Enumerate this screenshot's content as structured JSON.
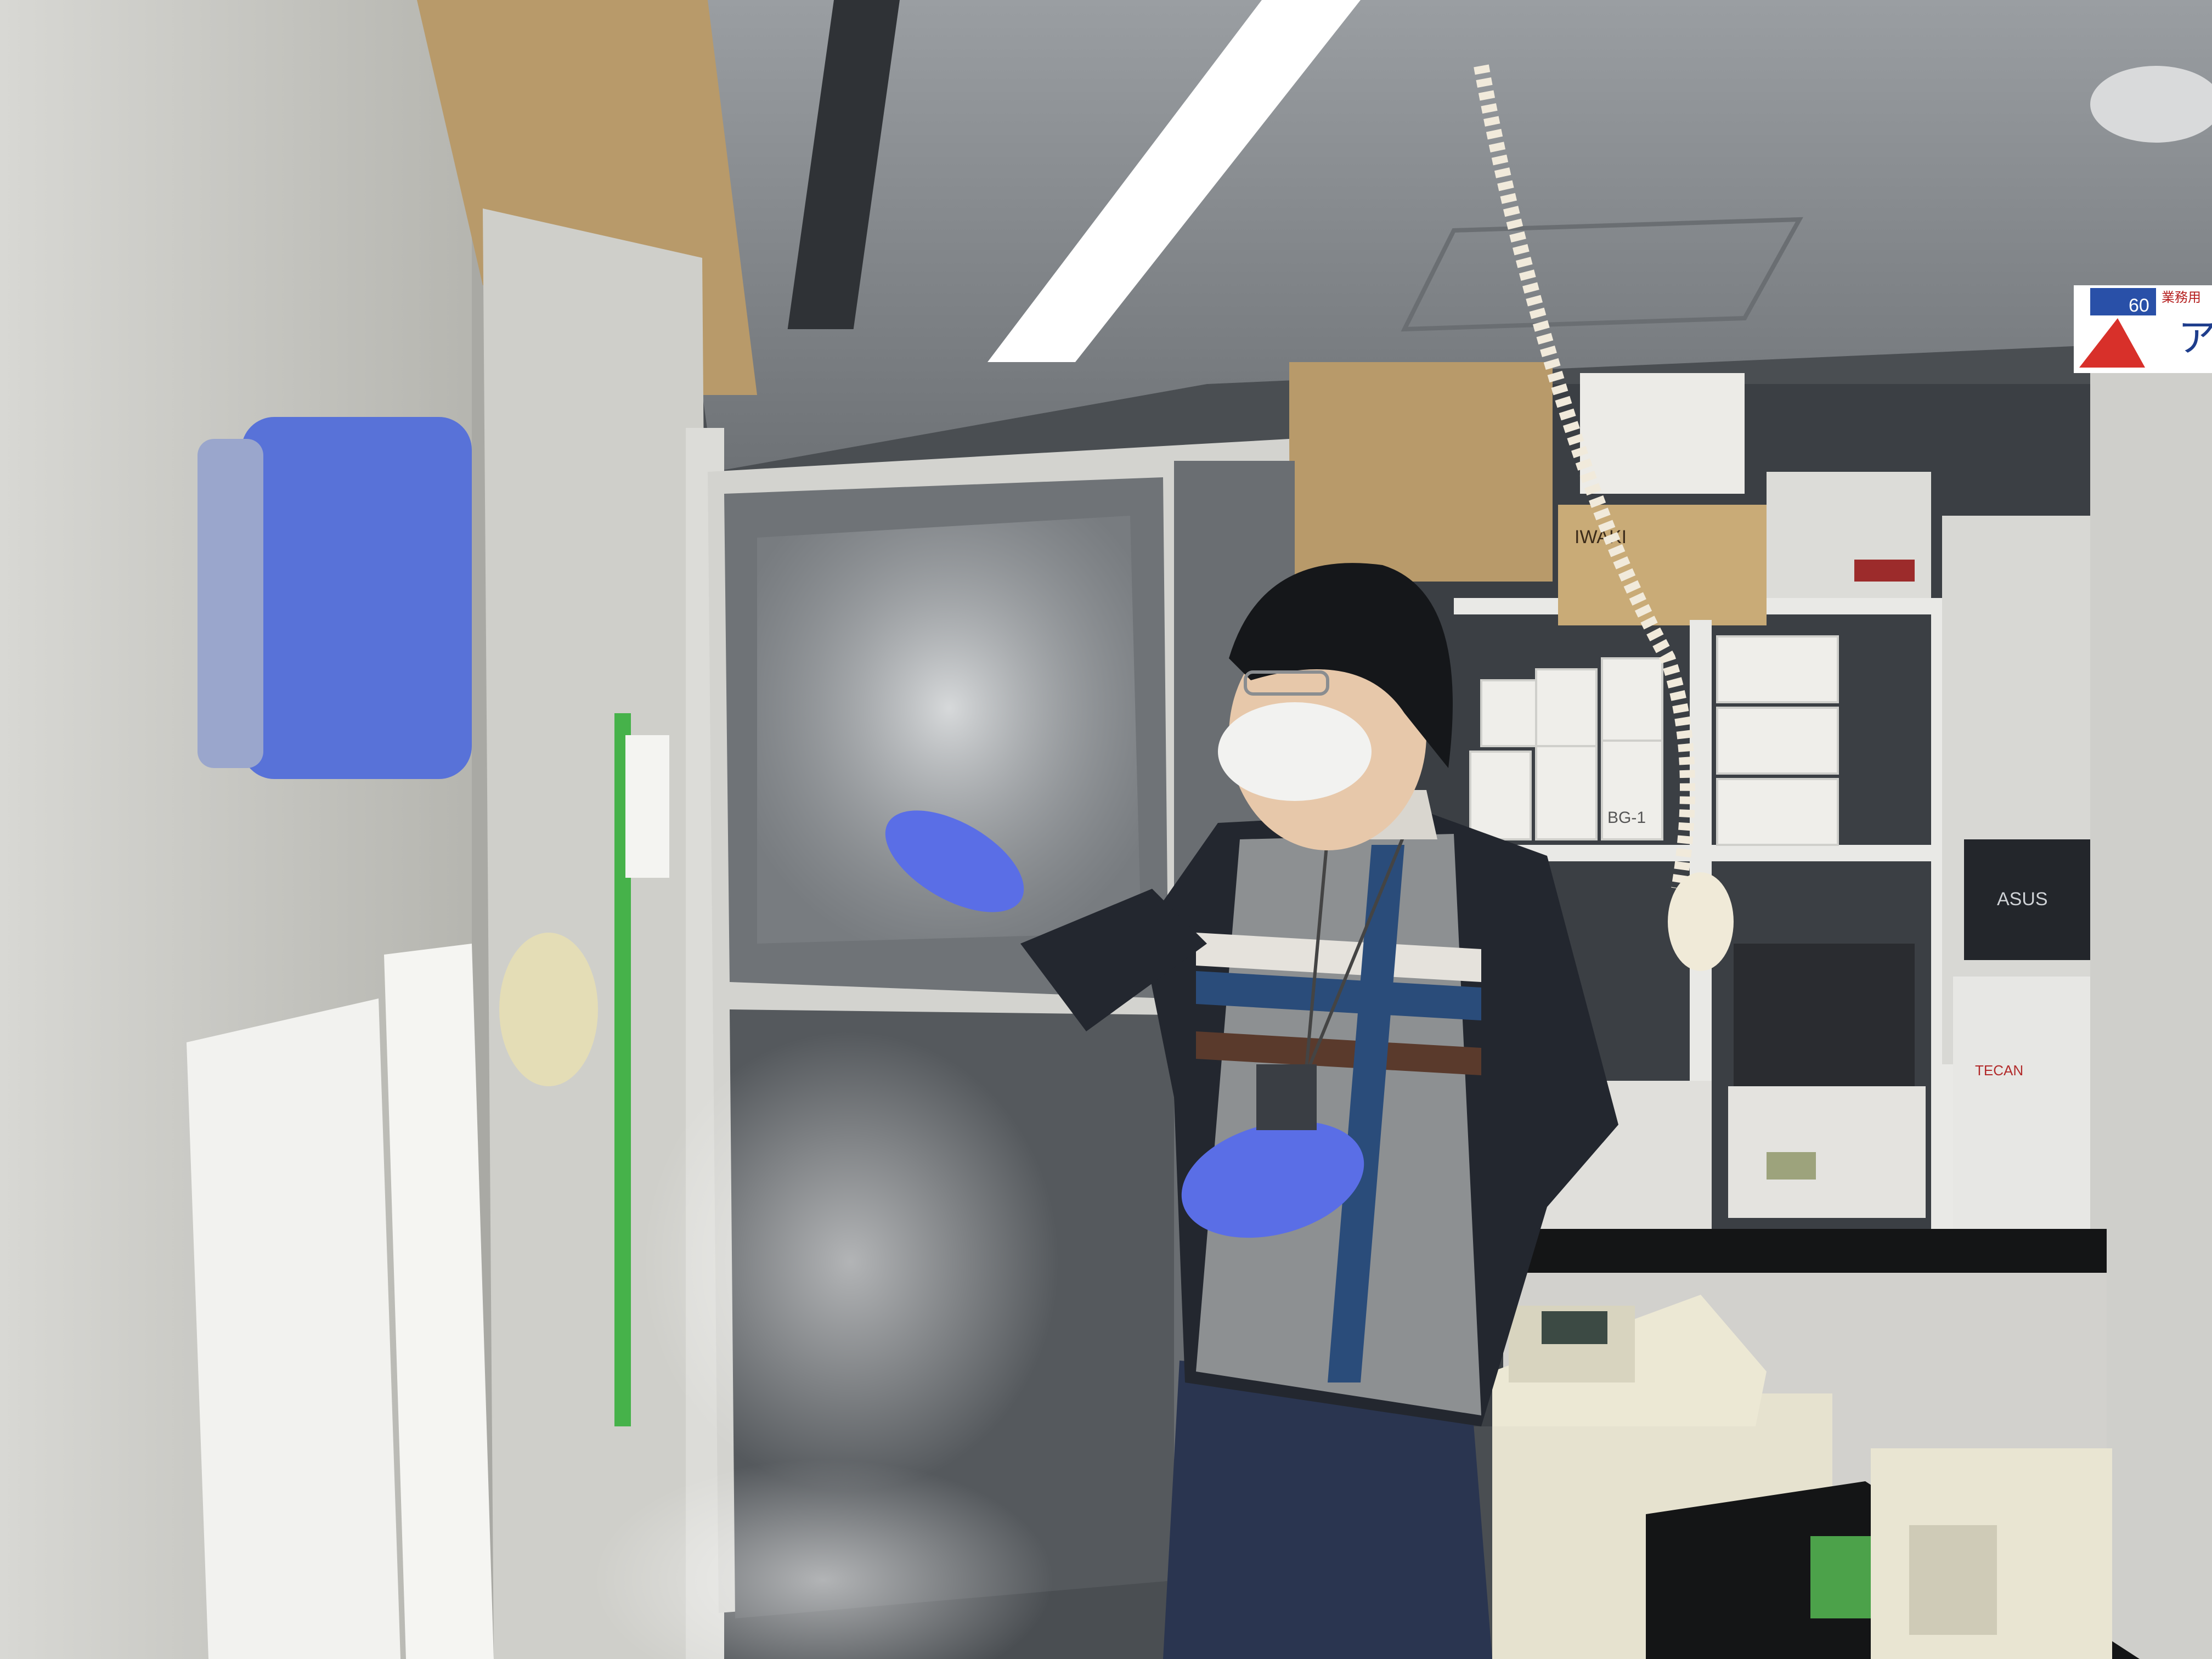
{
  "scene": {
    "kind": "photo",
    "palette": {
      "ceiling": "#8c9094",
      "wall_dark": "#3b3f44",
      "freezer_body": "#c9c9c4",
      "freezer_inner_door": "#6f7377",
      "frost": "#e7e9ea",
      "glove_blue": "#5a6ee6",
      "sweater_dark": "#23272f",
      "sweater_grey": "#8d9092",
      "stripe_blue": "#2a4c7a",
      "stripe_white": "#e5e2dc",
      "stripe_brown": "#5a3a2c",
      "jeans": "#2a3550",
      "shelf_white": "#e9e9e6",
      "cardboard": "#b89a6a",
      "light": "#ffffff",
      "bench_black": "#141516",
      "mist": "#ffffff"
    }
  },
  "labels": {
    "asus_logo": "ASUS",
    "tecan_label": "TECAN",
    "iwaki_label": "IWAKI",
    "bin_label": "BG-1",
    "sign_top_right": "業務用",
    "sign_number": "60",
    "sign_char": "ア"
  }
}
